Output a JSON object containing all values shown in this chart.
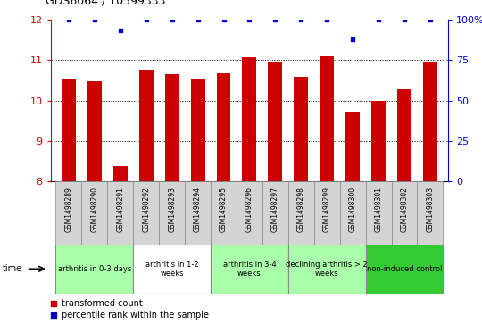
{
  "title": "GDS6064 / 10599333",
  "samples": [
    "GSM1498289",
    "GSM1498290",
    "GSM1498291",
    "GSM1498292",
    "GSM1498293",
    "GSM1498294",
    "GSM1498295",
    "GSM1498296",
    "GSM1498297",
    "GSM1498298",
    "GSM1498299",
    "GSM1498300",
    "GSM1498301",
    "GSM1498302",
    "GSM1498303"
  ],
  "bar_values": [
    10.55,
    10.48,
    8.38,
    10.75,
    10.65,
    10.55,
    10.68,
    11.08,
    10.95,
    10.58,
    11.1,
    9.72,
    10.0,
    10.28,
    10.95
  ],
  "dot_values": [
    100,
    100,
    93,
    100,
    100,
    100,
    100,
    100,
    100,
    100,
    100,
    88,
    100,
    100,
    100
  ],
  "bar_color": "#cc0000",
  "dot_color": "#0000cc",
  "ylim": [
    8,
    12
  ],
  "yticks_left": [
    8,
    9,
    10,
    11,
    12
  ],
  "right_yticks": [
    0,
    25,
    50,
    75,
    100
  ],
  "groups": [
    {
      "label": "arthritis in 0-3 days",
      "start": 0,
      "end": 3,
      "color": "#aaffaa"
    },
    {
      "label": "arthritis in 1-2\nweeks",
      "start": 3,
      "end": 6,
      "color": "#ffffff"
    },
    {
      "label": "arthritis in 3-4\nweeks",
      "start": 6,
      "end": 9,
      "color": "#aaffaa"
    },
    {
      "label": "declining arthritis > 2\nweeks",
      "start": 9,
      "end": 12,
      "color": "#aaffaa"
    },
    {
      "label": "non-induced control",
      "start": 12,
      "end": 15,
      "color": "#33cc33"
    }
  ],
  "legend_bar_label": "transformed count",
  "legend_dot_label": "percentile rank within the sample",
  "sample_box_color": "#d4d4d4",
  "sample_box_edge": "#888888"
}
